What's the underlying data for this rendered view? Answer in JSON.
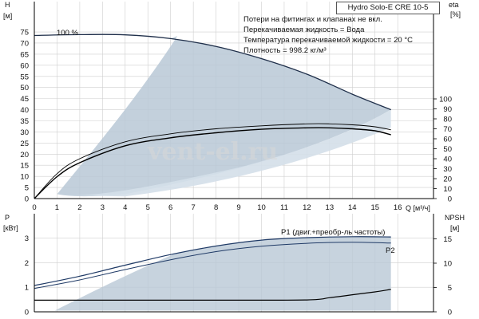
{
  "title": "Hydro Solo-E CRE 10-5",
  "watermark": "vent-el.ru",
  "notes": [
    "Потери на фитингах и клапанах не вкл.",
    "Перекачиваемая жидкость = Вода",
    "Температура перекачиваемой жидкости = 20 °C",
    "Плотность = 998.2 кг/м³"
  ],
  "colors": {
    "area_fill": "#b9c8d6",
    "area_fill_light": "#d4dfe9",
    "curve": "#1f2f4a",
    "power_curve": "#1f3a66",
    "line": "#000000",
    "grid": "#cfcfcf"
  },
  "top_chart": {
    "y_left_label": "H",
    "y_left_unit": "[м]",
    "y_right_label": "eta",
    "y_right_unit": "[%]",
    "x_unit_label": "Q [м³/ч]",
    "x_ticks": [
      "0",
      "1",
      "2",
      "3",
      "4",
      "5",
      "6",
      "7",
      "8",
      "9",
      "10",
      "11",
      "12",
      "13",
      "14",
      "15",
      "16"
    ],
    "y_left_ticks": [
      "0",
      "5",
      "10",
      "15",
      "20",
      "25",
      "30",
      "35",
      "40",
      "45",
      "50",
      "55",
      "60",
      "65",
      "70",
      "75"
    ],
    "y_right_ticks": [
      "0",
      "10",
      "20",
      "30",
      "40",
      "50",
      "60",
      "70",
      "80",
      "90",
      "100"
    ],
    "curve_label": "100 %"
  },
  "bottom_chart": {
    "y_left_label": "P",
    "y_left_unit": "[кВт]",
    "y_right_label": "NPSH",
    "y_right_unit": "[м]",
    "y_left_ticks": [
      "0",
      "1",
      "2",
      "3"
    ],
    "y_right_ticks": [
      "0",
      "5",
      "10",
      "15"
    ],
    "p1_label": "P1 (двиг.+преобр-ль частоты)",
    "p2_label": "P2"
  },
  "chart_data": [
    {
      "type": "line",
      "title": "Hydro Solo-E CRE 10-5",
      "xlabel": "Q [м³/ч]",
      "ylabel": "H [м]",
      "y2label": "eta [%]",
      "xlim": [
        0,
        16.5
      ],
      "ylim": [
        0,
        80
      ],
      "y2lim": [
        0,
        110
      ],
      "series": [
        {
          "name": "100 %",
          "axis": "H",
          "x": [
            0,
            2,
            4,
            6,
            8,
            10,
            12,
            14,
            15.7
          ],
          "y": [
            73.4,
            73.8,
            73.7,
            72,
            68.5,
            63,
            56,
            47,
            40
          ]
        },
        {
          "axis": "eta",
          "x": [
            0,
            1,
            2,
            4,
            6,
            8,
            10,
            12,
            13,
            14,
            15,
            15.7
          ],
          "y": [
            0,
            25,
            40,
            57,
            65,
            70,
            73,
            75,
            75,
            74,
            72,
            69
          ]
        },
        {
          "axis": "eta",
          "x": [
            0,
            1,
            2,
            4,
            6,
            8,
            10,
            12,
            13,
            14,
            15,
            15.7
          ],
          "y": [
            0,
            22,
            36,
            53,
            61,
            66,
            69.5,
            71,
            71,
            70,
            68,
            64
          ]
        }
      ]
    },
    {
      "type": "line",
      "xlabel": "Q [м³/ч]",
      "ylabel": "P [кВт]",
      "y2label": "NPSH [м]",
      "xlim": [
        0,
        16.5
      ],
      "ylim": [
        0,
        3.6
      ],
      "y2lim": [
        0,
        17.5
      ],
      "series": [
        {
          "name": "P1 (двиг.+преобр-ль частоты)",
          "axis": "P",
          "x": [
            0,
            2,
            4,
            6,
            8,
            10,
            12,
            14,
            15.7
          ],
          "y": [
            1.07,
            1.45,
            1.9,
            2.33,
            2.68,
            2.92,
            3.02,
            3.06,
            3.05
          ]
        },
        {
          "name": "P2",
          "axis": "P",
          "x": [
            0,
            2,
            4,
            6,
            8,
            10,
            12,
            14,
            15.7
          ],
          "y": [
            0.95,
            1.3,
            1.72,
            2.12,
            2.45,
            2.67,
            2.79,
            2.83,
            2.8
          ]
        },
        {
          "axis": "NPSH",
          "x": [
            0,
            4,
            8,
            12,
            13,
            14,
            15,
            15.7
          ],
          "y": [
            2.4,
            2.4,
            2.4,
            2.45,
            2.9,
            3.5,
            4.1,
            4.6
          ]
        }
      ]
    }
  ]
}
